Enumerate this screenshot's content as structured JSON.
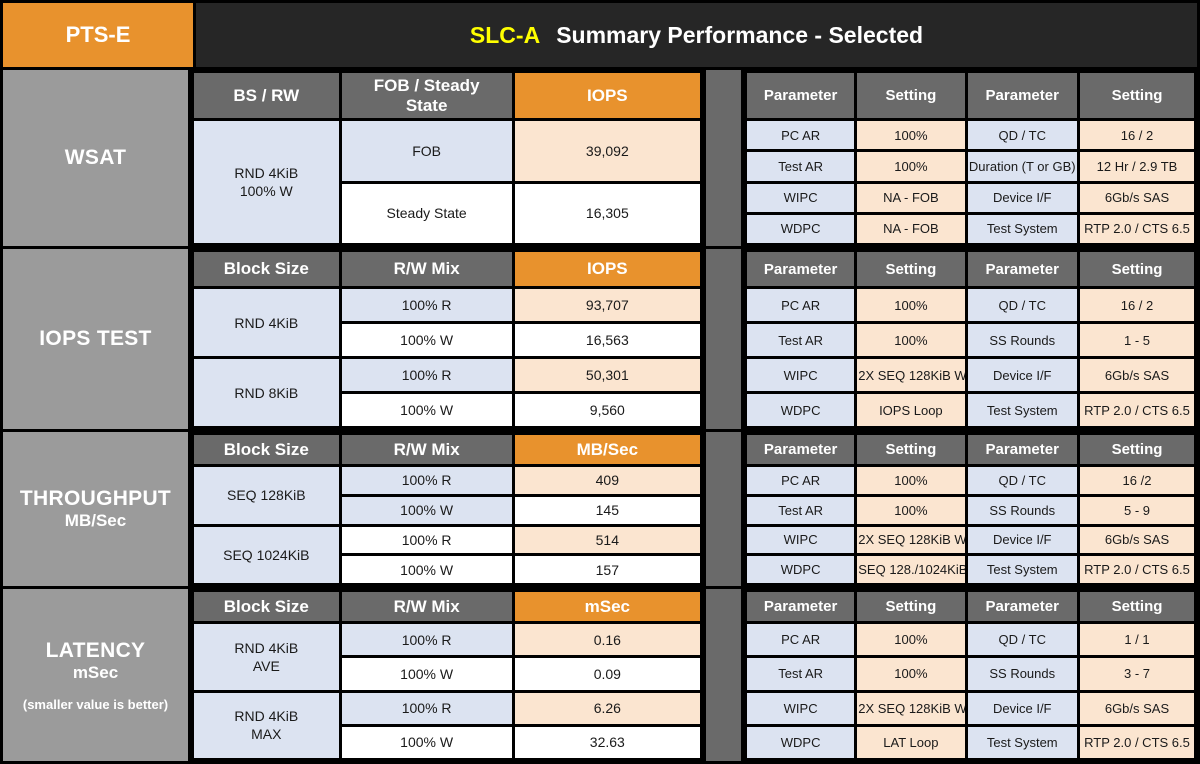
{
  "header": {
    "badge": "PTS-E",
    "device": "SLC-A",
    "title": "Summary Performance - Selected"
  },
  "colors": {
    "orange": "#E8922D",
    "header_gray": "#6A6A6A",
    "sidebar_gray": "#9B9B9B",
    "title_bg": "#262626",
    "light_blue": "#DCE3F1",
    "peach": "#FBE5D0",
    "yellow": "#FFFF00"
  },
  "sections": [
    {
      "label": "WSAT",
      "left": {
        "headers": [
          "BS / RW",
          "FOB / Steady State",
          "IOPS"
        ],
        "group1": {
          "line1": "RND 4KiB",
          "line2": "100% W"
        },
        "rows": [
          {
            "mix": "FOB",
            "value": "39,092"
          },
          {
            "mix": "Steady State",
            "value": "16,305"
          }
        ]
      },
      "params": {
        "headers": [
          "Parameter",
          "Setting",
          "Parameter",
          "Setting"
        ],
        "rows": [
          [
            "PC AR",
            "100%",
            "QD / TC",
            "16 / 2"
          ],
          [
            "Test AR",
            "100%",
            "Duration (T or GB)",
            "12 Hr / 2.9 TB"
          ],
          [
            "WIPC",
            "NA - FOB",
            "Device I/F",
            "6Gb/s SAS"
          ],
          [
            "WDPC",
            "NA - FOB",
            "Test System",
            "RTP 2.0 / CTS 6.5"
          ]
        ]
      }
    },
    {
      "label": "IOPS TEST",
      "left": {
        "headers": [
          "Block Size",
          "R/W Mix",
          "IOPS"
        ],
        "group1": {
          "line1": "RND 4KiB"
        },
        "group2": {
          "line1": "RND 8KiB"
        },
        "rows": [
          {
            "mix": "100% R",
            "value": "93,707"
          },
          {
            "mix": "100% W",
            "value": "16,563"
          },
          {
            "mix": "100% R",
            "value": "50,301"
          },
          {
            "mix": "100% W",
            "value": "9,560"
          }
        ]
      },
      "params": {
        "headers": [
          "Parameter",
          "Setting",
          "Parameter",
          "Setting"
        ],
        "rows": [
          [
            "PC AR",
            "100%",
            "QD / TC",
            "16 / 2"
          ],
          [
            "Test AR",
            "100%",
            "SS Rounds",
            "1 - 5"
          ],
          [
            "WIPC",
            "2X SEQ 128KiB W",
            "Device I/F",
            "6Gb/s SAS"
          ],
          [
            "WDPC",
            "IOPS Loop",
            "Test System",
            "RTP 2.0 / CTS 6.5"
          ]
        ]
      }
    },
    {
      "label": "THROUGHPUT",
      "sublabel": "MB/Sec",
      "left": {
        "headers": [
          "Block Size",
          "R/W Mix",
          "MB/Sec"
        ],
        "group1": {
          "line1": "SEQ 128KiB"
        },
        "group2": {
          "line1": "SEQ 1024KiB"
        },
        "rows": [
          {
            "mix": "100% R",
            "value": "409"
          },
          {
            "mix": "100% W",
            "value": "145"
          },
          {
            "mix": "100% R",
            "value": "514"
          },
          {
            "mix": "100% W",
            "value": "157"
          }
        ]
      },
      "params": {
        "headers": [
          "Parameter",
          "Setting",
          "Parameter",
          "Setting"
        ],
        "rows": [
          [
            "PC AR",
            "100%",
            "QD / TC",
            "16 /2"
          ],
          [
            "Test AR",
            "100%",
            "SS Rounds",
            "5 - 9"
          ],
          [
            "WIPC",
            "2X SEQ 128KiB W",
            "Device I/F",
            "6Gb/s SAS"
          ],
          [
            "WDPC",
            "SEQ 128./1024KiB",
            "Test System",
            "RTP 2.0 / CTS 6.5"
          ]
        ]
      }
    },
    {
      "label": "LATENCY",
      "sublabel": "mSec",
      "note": "(smaller value is better)",
      "left": {
        "headers": [
          "Block Size",
          "R/W  Mix",
          "mSec"
        ],
        "group1": {
          "line1": "RND 4KiB",
          "line2": "AVE"
        },
        "group2": {
          "line1": "RND 4KiB",
          "line2": "MAX"
        },
        "rows": [
          {
            "mix": "100% R",
            "value": "0.16"
          },
          {
            "mix": "100% W",
            "value": "0.09"
          },
          {
            "mix": "100% R",
            "value": "6.26"
          },
          {
            "mix": "100% W",
            "value": "32.63"
          }
        ]
      },
      "params": {
        "headers": [
          "Parameter",
          "Setting",
          "Parameter",
          "Setting"
        ],
        "rows": [
          [
            "PC AR",
            "100%",
            "QD / TC",
            "1 / 1"
          ],
          [
            "Test AR",
            "100%",
            "SS Rounds",
            "3 - 7"
          ],
          [
            "WIPC",
            "2X SEQ 128KiB W",
            "Device I/F",
            "6Gb/s SAS"
          ],
          [
            "WDPC",
            "LAT Loop",
            "Test System",
            "RTP 2.0 / CTS 6.5"
          ]
        ]
      }
    }
  ]
}
